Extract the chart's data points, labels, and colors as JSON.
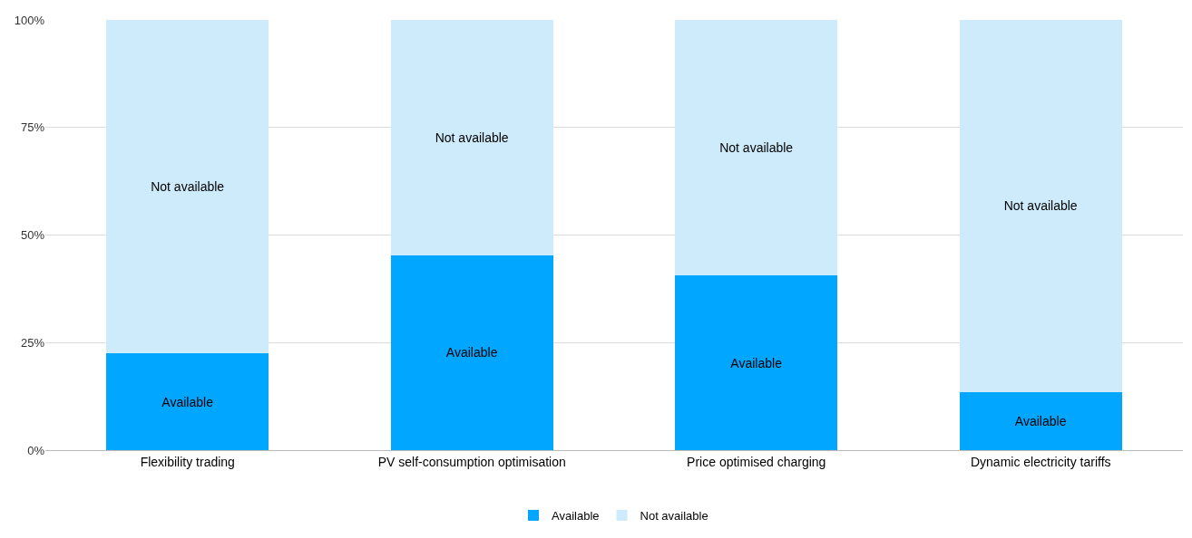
{
  "chart_data": {
    "type": "bar",
    "stacked": true,
    "categories": [
      "Flexibility trading",
      "PV self-consumption optimisation",
      "Price optimised charging",
      "Dynamic electricity tariffs"
    ],
    "series": [
      {
        "name": "Available",
        "color": "#00a6ff",
        "values": [
          22.5,
          45.3,
          40.6,
          13.5
        ]
      },
      {
        "name": "Not available",
        "color": "#cdebfb",
        "values": [
          77.5,
          54.7,
          59.4,
          86.5
        ]
      }
    ],
    "ylim": [
      0,
      100
    ],
    "yticks": [
      {
        "value": 0,
        "label": "0%"
      },
      {
        "value": 25,
        "label": "25%"
      },
      {
        "value": 50,
        "label": "50%"
      },
      {
        "value": 75,
        "label": "75%"
      },
      {
        "value": 100,
        "label": "100%"
      }
    ],
    "grid": "y",
    "legend": "bottom"
  }
}
